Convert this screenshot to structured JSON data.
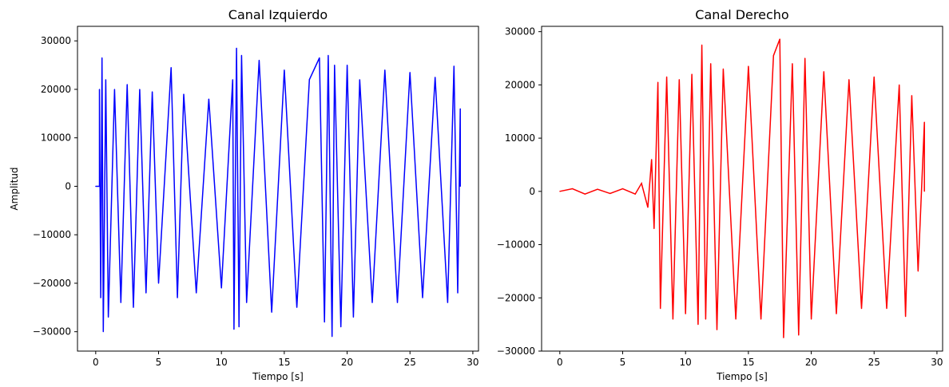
{
  "chart_data": [
    {
      "type": "line",
      "title": "Canal Izquierdo",
      "xlabel": "Tiempo [s]",
      "ylabel": "Amplitud",
      "xlim": [
        -1.45,
        30.45
      ],
      "ylim": [
        -34000,
        33000
      ],
      "xticks": [
        0,
        5,
        10,
        15,
        20,
        25,
        30
      ],
      "yticks": [
        -30000,
        -20000,
        -10000,
        0,
        10000,
        20000,
        30000
      ],
      "grid": false,
      "series": [
        {
          "color": "#0000ff",
          "points": [
            [
              0.0,
              0
            ],
            [
              0.3,
              0
            ],
            [
              0.3,
              20000
            ],
            [
              0.4,
              -23000
            ],
            [
              0.5,
              26500
            ],
            [
              0.6,
              -30000
            ],
            [
              0.8,
              22000
            ],
            [
              1.0,
              -27000
            ],
            [
              1.5,
              20000
            ],
            [
              2.0,
              -24000
            ],
            [
              2.5,
              21000
            ],
            [
              3.0,
              -25000
            ],
            [
              3.5,
              20000
            ],
            [
              4.0,
              -22000
            ],
            [
              4.5,
              19500
            ],
            [
              5.0,
              -20000
            ],
            [
              6.0,
              24500
            ],
            [
              6.5,
              -23000
            ],
            [
              7.0,
              19000
            ],
            [
              8.0,
              -22000
            ],
            [
              9.0,
              18000
            ],
            [
              10.0,
              -21000
            ],
            [
              10.9,
              22000
            ],
            [
              11.0,
              -29500
            ],
            [
              11.2,
              28500
            ],
            [
              11.4,
              -29000
            ],
            [
              11.6,
              27000
            ],
            [
              12.0,
              -24000
            ],
            [
              13.0,
              26000
            ],
            [
              14.0,
              -26000
            ],
            [
              15.0,
              24000
            ],
            [
              16.0,
              -25000
            ],
            [
              17.0,
              22000
            ],
            [
              17.8,
              26500
            ],
            [
              18.2,
              -28000
            ],
            [
              18.5,
              27000
            ],
            [
              18.8,
              -31000
            ],
            [
              19.0,
              25000
            ],
            [
              19.5,
              -29000
            ],
            [
              20.0,
              25000
            ],
            [
              20.5,
              -27000
            ],
            [
              21.0,
              22000
            ],
            [
              22.0,
              -24000
            ],
            [
              23.0,
              24000
            ],
            [
              24.0,
              -24000
            ],
            [
              25.0,
              23500
            ],
            [
              26.0,
              -23000
            ],
            [
              27.0,
              22500
            ],
            [
              28.0,
              -24000
            ],
            [
              28.5,
              24800
            ],
            [
              28.8,
              -22000
            ],
            [
              29.0,
              16000
            ],
            [
              29.0,
              0
            ]
          ]
        }
      ]
    },
    {
      "type": "line",
      "title": "Canal Derecho",
      "xlabel": "Tiempo [s]",
      "ylabel": "",
      "xlim": [
        -1.45,
        30.45
      ],
      "ylim": [
        -30000,
        31000
      ],
      "xticks": [
        0,
        5,
        10,
        15,
        20,
        25,
        30
      ],
      "yticks": [
        -30000,
        -20000,
        -10000,
        0,
        10000,
        20000,
        30000
      ],
      "grid": false,
      "series": [
        {
          "color": "#ff0000",
          "points": [
            [
              0.0,
              0
            ],
            [
              1.0,
              500
            ],
            [
              2.0,
              -500
            ],
            [
              3.0,
              400
            ],
            [
              4.0,
              -400
            ],
            [
              5.0,
              500
            ],
            [
              6.0,
              -500
            ],
            [
              6.5,
              1500
            ],
            [
              7.0,
              -3000
            ],
            [
              7.3,
              6000
            ],
            [
              7.5,
              -7000
            ],
            [
              7.8,
              20500
            ],
            [
              8.0,
              -22000
            ],
            [
              8.5,
              21500
            ],
            [
              9.0,
              -24000
            ],
            [
              9.5,
              21000
            ],
            [
              10.0,
              -23000
            ],
            [
              10.5,
              22000
            ],
            [
              11.0,
              -25000
            ],
            [
              11.3,
              27500
            ],
            [
              11.6,
              -24000
            ],
            [
              12.0,
              24000
            ],
            [
              12.5,
              -26000
            ],
            [
              13.0,
              23000
            ],
            [
              14.0,
              -24000
            ],
            [
              15.0,
              23500
            ],
            [
              16.0,
              -24000
            ],
            [
              17.0,
              25500
            ],
            [
              17.5,
              28600
            ],
            [
              17.8,
              -27500
            ],
            [
              18.5,
              24000
            ],
            [
              19.0,
              -27000
            ],
            [
              19.5,
              25000
            ],
            [
              20.0,
              -24000
            ],
            [
              21.0,
              22500
            ],
            [
              22.0,
              -23000
            ],
            [
              23.0,
              21000
            ],
            [
              24.0,
              -22000
            ],
            [
              25.0,
              21500
            ],
            [
              26.0,
              -22000
            ],
            [
              27.0,
              20000
            ],
            [
              27.5,
              -23500
            ],
            [
              28.0,
              18000
            ],
            [
              28.5,
              -15000
            ],
            [
              29.0,
              13000
            ],
            [
              29.0,
              0
            ]
          ]
        }
      ]
    }
  ]
}
